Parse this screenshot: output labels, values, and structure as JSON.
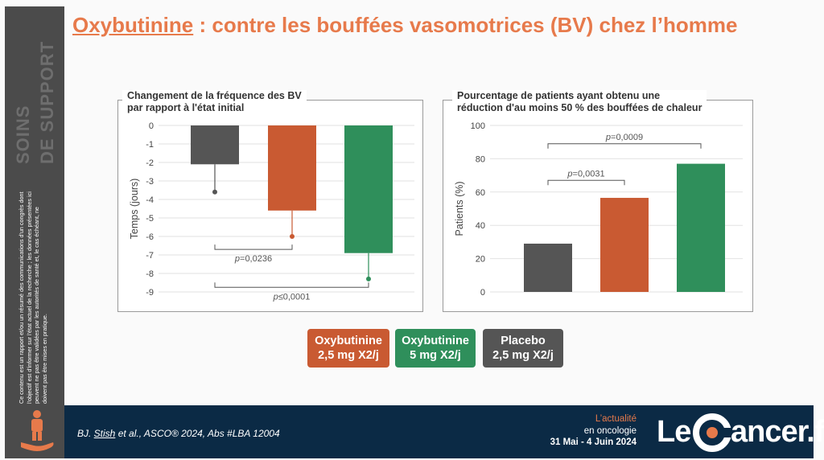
{
  "sidebar": {
    "title_line1": "SOINS",
    "title_line2": "DE SUPPORT",
    "disclaimer": "Ce contenu est un rapport et/ou un résumé des communications d'un congrès dont l'objectif est d'informer sur l'état actuel de la recherche ; les données présentées ici peuvent ne pas être validées par les autorités de santé et, le cas échéant, ne doivent pas être mises en pratique."
  },
  "title": {
    "drug": "Oxybutinine",
    "rest": " : contre les bouffées vasomotrices (BV) chez l’homme"
  },
  "colors": {
    "accent": "#e77a4b",
    "placebo": "#555555",
    "oxy25": "#c95a32",
    "oxy5": "#2f8f5b",
    "footer": "#0b2a45"
  },
  "chart_data": [
    {
      "type": "bar",
      "title": "Changement de la fréquence des BV par rapport à l'état initial",
      "title_line1": "Changement de la fréquence des BV",
      "title_line2": "par rapport à l'état initial",
      "ylabel": "Temps (jours)",
      "ylim": [
        -9,
        0
      ],
      "yticks": [
        "0",
        "-1",
        "-2",
        "-3",
        "-4",
        "-5",
        "-6",
        "-7",
        "-8",
        "-9"
      ],
      "grid": true,
      "bars": [
        {
          "group": "Placebo 2,5 mg X2/j",
          "value": -2.1,
          "error_end": -3.6,
          "color": "#555555"
        },
        {
          "group": "Oxybutinine 2,5 mg X2/j",
          "value": -4.6,
          "error_end": -6.0,
          "color": "#c95a32"
        },
        {
          "group": "Oxybutinine 5 mg X2/j",
          "value": -6.9,
          "error_end": -8.3,
          "color": "#2f8f5b"
        }
      ],
      "comparisons": [
        {
          "p_label": "p",
          "p_value": "=0,0236",
          "from": 0,
          "to": 1
        },
        {
          "p_label": "p",
          "p_value": "≤0,0001",
          "from": 0,
          "to": 2
        }
      ]
    },
    {
      "type": "bar",
      "title": "Pourcentage de patients ayant obtenu une réduction d'au moins 50 % des bouffées de chaleur",
      "title_line1": "Pourcentage de patients ayant obtenu une",
      "title_line2": "réduction d'au moins 50 % des bouffées de chaleur",
      "ylabel": "Patients (%)",
      "ylim": [
        0,
        100
      ],
      "yticks": [
        "100",
        "80",
        "60",
        "40",
        "20",
        "0"
      ],
      "grid": true,
      "bars": [
        {
          "group": "Placebo 2,5 mg X2/j",
          "value": 29,
          "color": "#555555"
        },
        {
          "group": "Oxybutinine 2,5 mg X2/j",
          "value": 56.5,
          "color": "#c95a32"
        },
        {
          "group": "Oxybutinine 5 mg X2/j",
          "value": 77,
          "color": "#2f8f5b"
        }
      ],
      "comparisons": [
        {
          "p_label": "p",
          "p_value": "=0,0031",
          "from": 0,
          "to": 1
        },
        {
          "p_label": "p",
          "p_value": "=0,0009",
          "from": 0,
          "to": 2
        }
      ]
    }
  ],
  "legend": [
    {
      "line1": "Oxybutinine",
      "line2": "2,5 mg X2/j",
      "color": "#c95a32"
    },
    {
      "line1": "Oxybutinine",
      "line2": "5 mg X2/j",
      "color": "#2f8f5b"
    },
    {
      "line1": "Placebo",
      "line2": "2,5 mg X2/j",
      "color": "#555555"
    }
  ],
  "footer": {
    "cite_author": "BJ. ",
    "cite_underlined": "Stish",
    "cite_rest": " et al., ASCO® 2024, Abs #LBA 12004",
    "event_line1": "L’actualité",
    "event_line2": "en oncologie",
    "event_line3": "31 Mai - 4 Juin 2024",
    "logo_le": "Le",
    "logo_rest": "ancer.fr"
  }
}
